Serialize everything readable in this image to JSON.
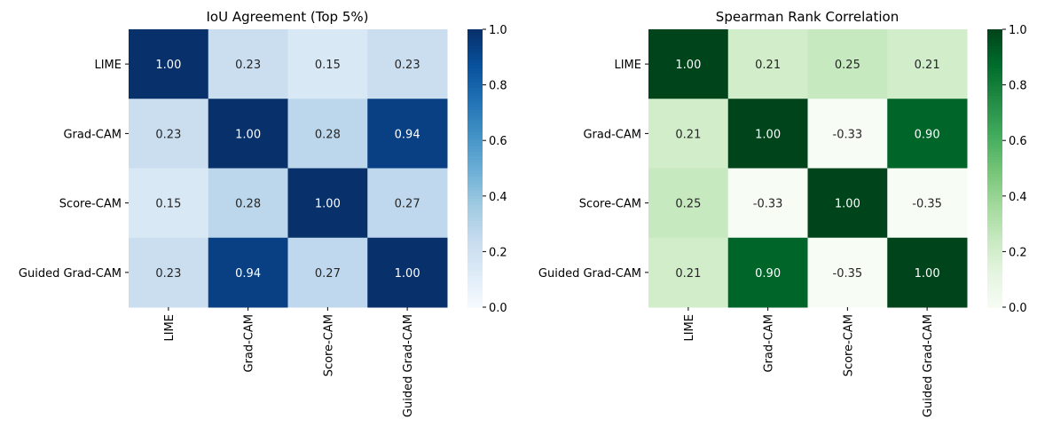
{
  "chart_data": [
    {
      "type": "heatmap",
      "title": "IoU Agreement (Top 5%)",
      "categories": [
        "LIME",
        "Grad-CAM",
        "Score-CAM",
        "Guided Grad-CAM"
      ],
      "rows": [
        "LIME",
        "Grad-CAM",
        "Score-CAM",
        "Guided Grad-CAM"
      ],
      "values": [
        [
          1.0,
          0.23,
          0.15,
          0.23
        ],
        [
          0.23,
          1.0,
          0.28,
          0.94
        ],
        [
          0.15,
          0.28,
          1.0,
          0.27
        ],
        [
          0.23,
          0.94,
          0.27,
          1.0
        ]
      ],
      "colormap": "Blues",
      "vmin": 0.0,
      "vmax": 1.0,
      "colorbar_ticks": [
        "0.0",
        "0.2",
        "0.4",
        "0.6",
        "0.8",
        "1.0"
      ],
      "annotations": true,
      "grid": false,
      "legend": "colorbar-right"
    },
    {
      "type": "heatmap",
      "title": "Spearman Rank Correlation",
      "categories": [
        "LIME",
        "Grad-CAM",
        "Score-CAM",
        "Guided Grad-CAM"
      ],
      "rows": [
        "LIME",
        "Grad-CAM",
        "Score-CAM",
        "Guided Grad-CAM"
      ],
      "values": [
        [
          1.0,
          0.21,
          0.25,
          0.21
        ],
        [
          0.21,
          1.0,
          -0.33,
          0.9
        ],
        [
          0.25,
          -0.33,
          1.0,
          -0.35
        ],
        [
          0.21,
          0.9,
          -0.35,
          1.0
        ]
      ],
      "colormap": "Greens",
      "vmin": 0.0,
      "vmax": 1.0,
      "colorbar_ticks": [
        "0.0",
        "0.2",
        "0.4",
        "0.6",
        "0.8",
        "1.0"
      ],
      "annotations": true,
      "grid": false,
      "legend": "colorbar-right"
    }
  ]
}
